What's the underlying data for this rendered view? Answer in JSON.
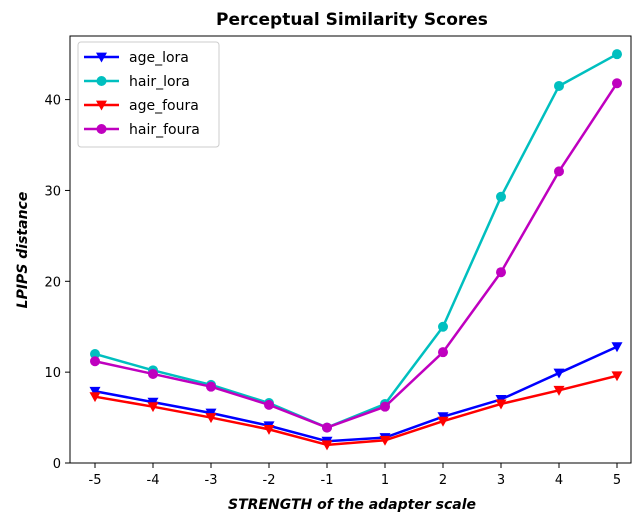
{
  "chart_data": {
    "type": "line",
    "title": "Perceptual Similarity Scores",
    "xlabel": "STRENGTH of the adapter scale",
    "ylabel": "LPIPS distance",
    "x": [
      -5,
      -4,
      -3,
      -2,
      -1,
      1,
      2,
      3,
      4,
      5
    ],
    "x_tick_labels": [
      "-5",
      "-4",
      "-3",
      "-2",
      "-1",
      "1",
      "2",
      "3",
      "4",
      "5"
    ],
    "y_ticks": [
      0,
      10,
      20,
      30,
      40
    ],
    "ylim": [
      0,
      47
    ],
    "grid": false,
    "legend_position": "top-left",
    "series": [
      {
        "name": "age_lora",
        "color": "#0000ff",
        "marker": "triangle-down",
        "values": [
          7.9,
          6.7,
          5.5,
          4.1,
          2.4,
          2.8,
          5.1,
          7.0,
          9.9,
          12.8
        ]
      },
      {
        "name": "hair_lora",
        "color": "#00bfbf",
        "marker": "circle",
        "values": [
          12.0,
          10.2,
          8.6,
          6.6,
          3.9,
          6.5,
          15.0,
          29.3,
          41.5,
          45.0
        ]
      },
      {
        "name": "age_foura",
        "color": "#ff0000",
        "marker": "triangle-down",
        "values": [
          7.3,
          6.2,
          5.0,
          3.7,
          2.0,
          2.5,
          4.6,
          6.5,
          8.0,
          9.6
        ]
      },
      {
        "name": "hair_foura",
        "color": "#bf00bf",
        "marker": "circle",
        "values": [
          11.2,
          9.8,
          8.4,
          6.4,
          3.9,
          6.2,
          12.2,
          21.0,
          32.1,
          41.8
        ]
      }
    ]
  }
}
